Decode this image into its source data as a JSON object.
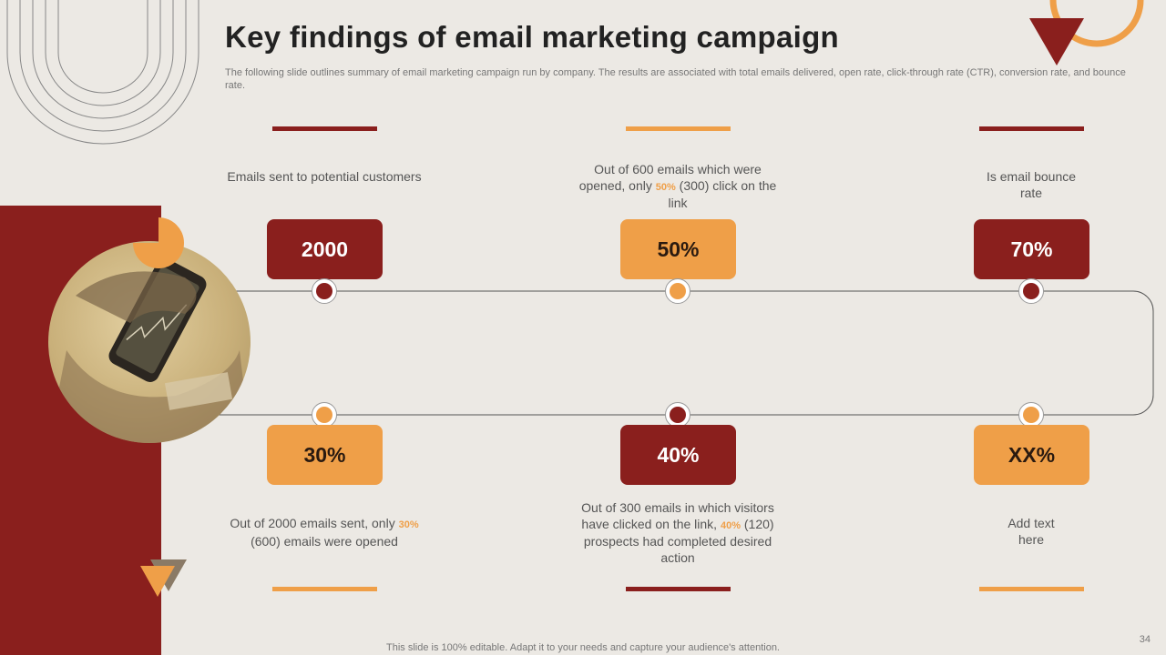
{
  "title": "Key findings of email marketing campaign",
  "subtitle": "The following slide outlines summary of email marketing campaign run by company. The results are associated with total emails delivered, open rate, click-through rate (CTR), conversion rate, and bounce rate.",
  "top": [
    {
      "value": "2000",
      "desc": "Emails sent to potential customers"
    },
    {
      "value": "50%",
      "desc_pre": "Out of 600 emails which were opened, only ",
      "highlight": "50%",
      "desc_post": " (300) click on the link"
    },
    {
      "value": "70%",
      "desc": "Is email bounce rate"
    }
  ],
  "bottom": [
    {
      "value": "30%",
      "desc_pre": "Out of 2000 emails sent, only ",
      "highlight": "30%",
      "desc_post": " (600) emails were opened"
    },
    {
      "value": "40%",
      "desc_pre": "Out of 300 emails in which visitors have clicked on the link, ",
      "highlight": "40%",
      "desc_post": " (120) prospects had completed desired action"
    },
    {
      "value": "XX%",
      "desc": "Add text here"
    }
  ],
  "footer": "This slide is 100% editable. Adapt it to your needs and capture your audience's attention.",
  "page_number": "34",
  "colors": {
    "red": "#8a1f1d",
    "orange": "#ef9f48",
    "background": "#ece9e4"
  }
}
